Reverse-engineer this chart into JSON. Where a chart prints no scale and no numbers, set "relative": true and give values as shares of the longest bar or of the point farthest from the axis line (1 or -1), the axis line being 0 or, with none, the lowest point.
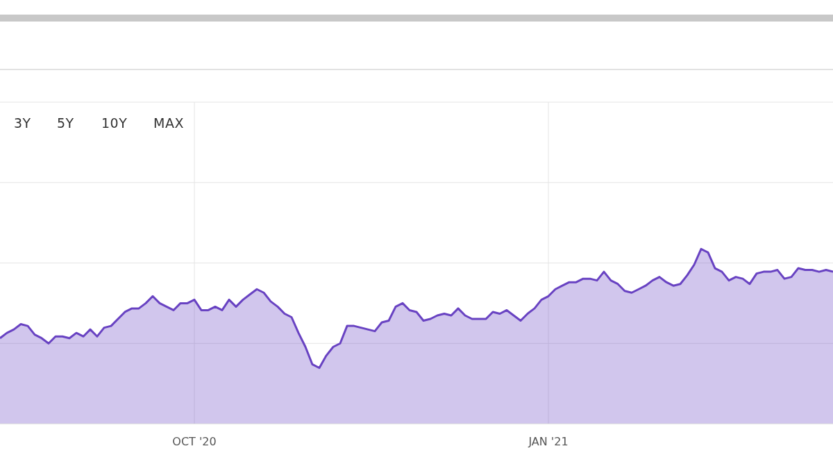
{
  "chart_data": {
    "type": "area",
    "relative": true,
    "grid": true,
    "annotations": [
      "3Y",
      "5Y",
      "10Y",
      "MAX"
    ],
    "categories": [
      null,
      null,
      null,
      null,
      null,
      null,
      null,
      null,
      null,
      null,
      null,
      null,
      null,
      null,
      null,
      null,
      null,
      null,
      null,
      null,
      null,
      null,
      null,
      null,
      null,
      null,
      null,
      null,
      "OCT '20",
      null,
      null,
      null,
      null,
      null,
      null,
      null,
      null,
      null,
      null,
      null,
      null,
      null,
      null,
      null,
      null,
      null,
      null,
      null,
      null,
      null,
      null,
      null,
      null,
      null,
      null,
      null,
      null,
      null,
      null,
      null,
      null,
      null,
      null,
      null,
      null,
      null,
      null,
      null,
      null,
      null,
      null,
      null,
      null,
      null,
      null,
      null,
      null,
      null,
      null,
      "JAN '21",
      null,
      null,
      null,
      null,
      null,
      null,
      null,
      null,
      null,
      null,
      null,
      null,
      null,
      null,
      null,
      null,
      null,
      null,
      null,
      null,
      null,
      null,
      null,
      null,
      null,
      null,
      null,
      null,
      null,
      null,
      null,
      null,
      null,
      null,
      null,
      null,
      null,
      null,
      null,
      null,
      null
    ],
    "series": [
      {
        "color": "#6842c2",
        "values": [
          0.49,
          0.52,
          0.54,
          0.57,
          0.56,
          0.51,
          0.49,
          0.46,
          0.5,
          0.5,
          0.49,
          0.52,
          0.5,
          0.54,
          0.5,
          0.55,
          0.56,
          0.6,
          0.64,
          0.66,
          0.66,
          0.69,
          0.73,
          0.69,
          0.67,
          0.65,
          0.69,
          0.69,
          0.71,
          0.65,
          0.65,
          0.67,
          0.65,
          0.71,
          0.67,
          0.71,
          0.74,
          0.77,
          0.75,
          0.7,
          0.67,
          0.63,
          0.61,
          0.52,
          0.44,
          0.34,
          0.32,
          0.39,
          0.44,
          0.46,
          0.56,
          0.56,
          0.55,
          0.54,
          0.53,
          0.58,
          0.59,
          0.67,
          0.69,
          0.65,
          0.64,
          0.59,
          0.6,
          0.62,
          0.63,
          0.62,
          0.66,
          0.62,
          0.6,
          0.6,
          0.6,
          0.64,
          0.63,
          0.65,
          0.62,
          0.59,
          0.63,
          0.66,
          0.71,
          0.73,
          0.77,
          0.79,
          0.81,
          0.81,
          0.83,
          0.83,
          0.82,
          0.87,
          0.82,
          0.8,
          0.76,
          0.75,
          0.77,
          0.79,
          0.82,
          0.84,
          0.81,
          0.79,
          0.8,
          0.85,
          0.91,
          1,
          0.98,
          0.89,
          0.87,
          0.82,
          0.84,
          0.83,
          0.8,
          0.86,
          0.87,
          0.87,
          0.88,
          0.83,
          0.84,
          0.89,
          0.88,
          0.88,
          0.87,
          0.88,
          0.87
        ]
      }
    ]
  }
}
